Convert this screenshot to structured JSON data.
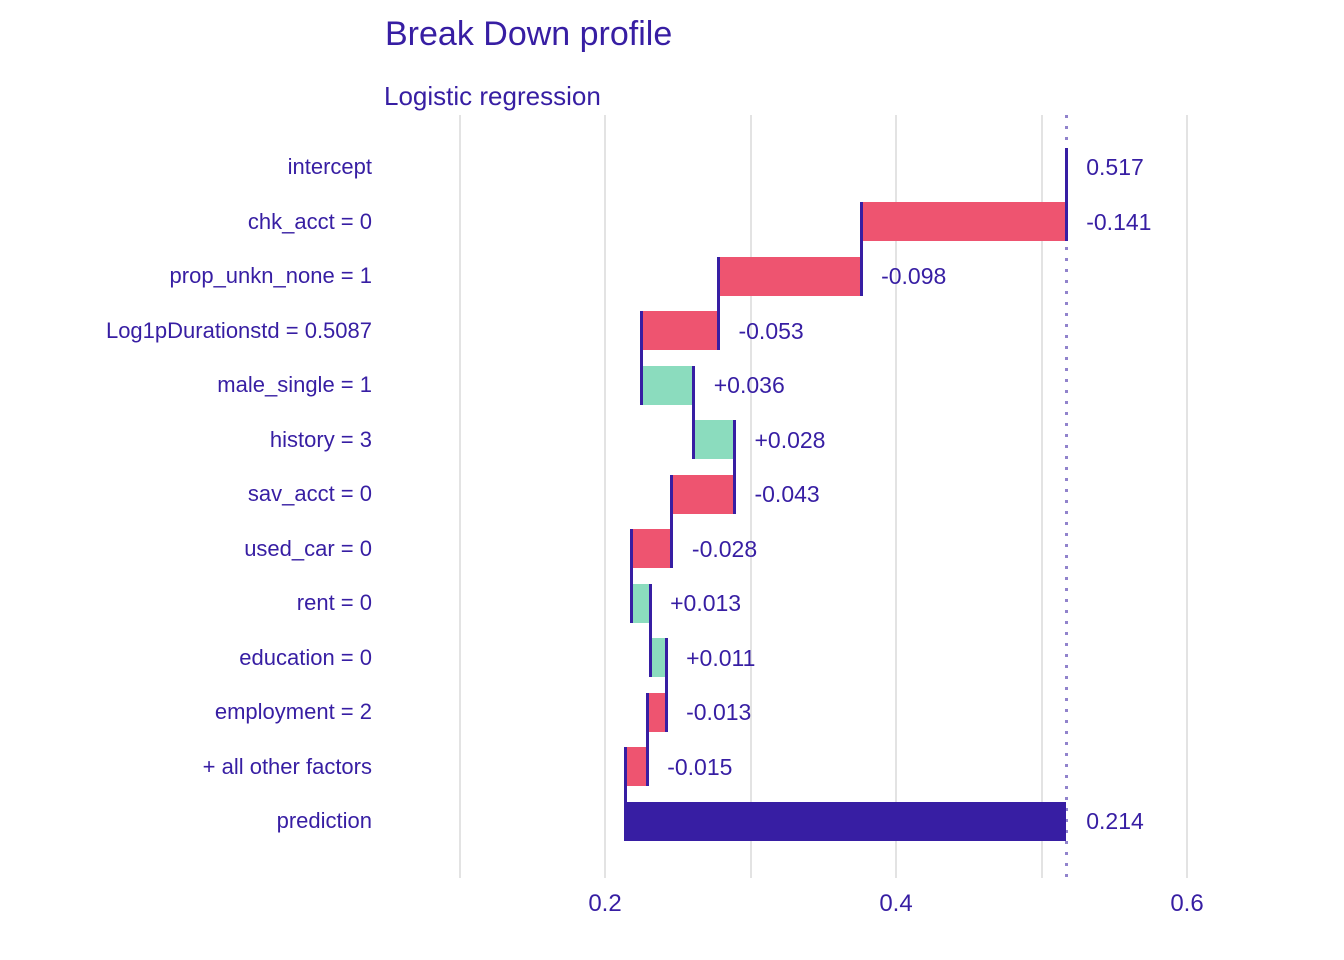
{
  "colors": {
    "text": "#371ea3",
    "negative": "#ee5470",
    "positive": "#8bdcbe",
    "prediction": "#371ea3",
    "connector": "#371ea3",
    "gridline": "#e3e3e3",
    "baseline_dotted": "#371ea3",
    "background": "#ffffff"
  },
  "chart_data": {
    "type": "bar",
    "subtype": "waterfall-breakdown",
    "title": "Break Down profile",
    "subtitle": "Logistic regression",
    "orientation": "horizontal",
    "grid": "vertical-only",
    "legend": "none",
    "baseline": 0.517,
    "x_axis": {
      "tick_values": [
        0.2,
        0.4,
        0.6
      ],
      "tick_labels": [
        "0.2",
        "0.4",
        "0.6"
      ],
      "gridline_values": [
        0.1,
        0.2,
        0.3,
        0.4,
        0.5,
        0.6
      ],
      "xlim": [
        0.085,
        0.615
      ]
    },
    "rows": [
      {
        "label": "intercept",
        "value_label": "0.517",
        "contribution": 0.517,
        "start": 0.517,
        "end": 0.517,
        "join": null,
        "kind": "intercept"
      },
      {
        "label": "chk_acct = 0",
        "value_label": "-0.141",
        "contribution": -0.141,
        "start": 0.517,
        "end": 0.376,
        "join": 0.517,
        "kind": "negative"
      },
      {
        "label": "prop_unkn_none = 1",
        "value_label": "-0.098",
        "contribution": -0.098,
        "start": 0.376,
        "end": 0.278,
        "join": 0.376,
        "kind": "negative"
      },
      {
        "label": "Log1pDurationstd = 0.5087",
        "value_label": "-0.053",
        "contribution": -0.053,
        "start": 0.278,
        "end": 0.225,
        "join": 0.278,
        "kind": "negative"
      },
      {
        "label": "male_single = 1",
        "value_label": "+0.036",
        "contribution": 0.036,
        "start": 0.225,
        "end": 0.261,
        "join": 0.225,
        "kind": "positive"
      },
      {
        "label": "history = 3",
        "value_label": "+0.028",
        "contribution": 0.028,
        "start": 0.261,
        "end": 0.289,
        "join": 0.261,
        "kind": "positive"
      },
      {
        "label": "sav_acct = 0",
        "value_label": "-0.043",
        "contribution": -0.043,
        "start": 0.289,
        "end": 0.246,
        "join": 0.289,
        "kind": "negative"
      },
      {
        "label": "used_car = 0",
        "value_label": "-0.028",
        "contribution": -0.028,
        "start": 0.246,
        "end": 0.218,
        "join": 0.246,
        "kind": "negative"
      },
      {
        "label": "rent = 0",
        "value_label": "+0.013",
        "contribution": 0.013,
        "start": 0.218,
        "end": 0.231,
        "join": 0.218,
        "kind": "positive"
      },
      {
        "label": "education = 0",
        "value_label": "+0.011",
        "contribution": 0.011,
        "start": 0.231,
        "end": 0.242,
        "join": 0.231,
        "kind": "positive"
      },
      {
        "label": "employment = 2",
        "value_label": "-0.013",
        "contribution": -0.013,
        "start": 0.242,
        "end": 0.229,
        "join": 0.242,
        "kind": "negative"
      },
      {
        "label": "+ all other factors",
        "value_label": "-0.015",
        "contribution": -0.015,
        "start": 0.229,
        "end": 0.214,
        "join": 0.229,
        "kind": "negative"
      },
      {
        "label": "prediction",
        "value_label": "0.214",
        "contribution": 0.214,
        "start": 0.517,
        "end": 0.214,
        "join": 0.214,
        "kind": "prediction"
      }
    ]
  }
}
